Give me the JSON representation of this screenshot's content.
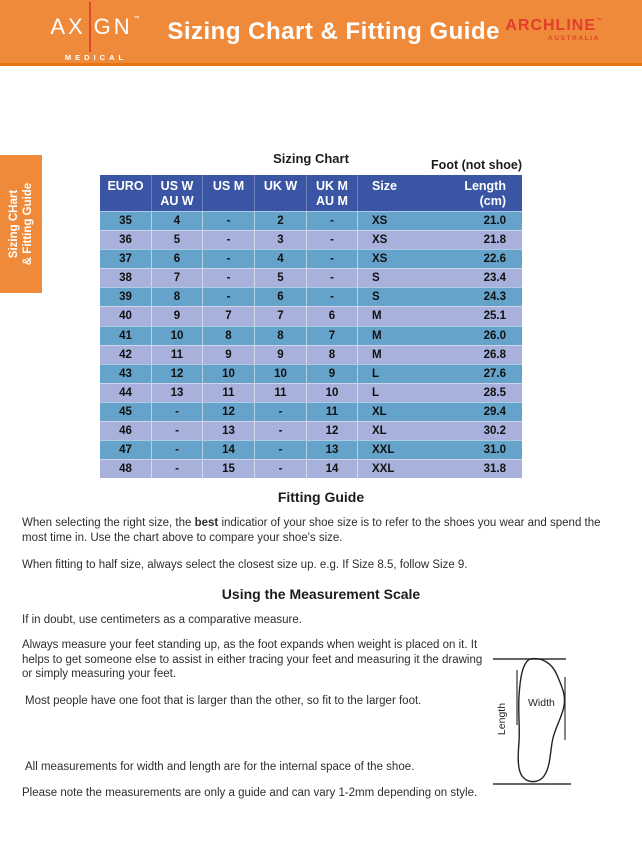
{
  "header": {
    "axign_part1": "AX",
    "axign_part2": "GN",
    "axign_tm": "™",
    "axign_sub": "MEDICAL",
    "title": "Sizing Chart & Fitting Guide",
    "archline_main": "ARCHLINE",
    "archline_tm": "™",
    "archline_sub": "AUSTRALIA"
  },
  "side_tab": {
    "line1": "Sizing CHart",
    "line2": "& Fitting Guide"
  },
  "chart": {
    "title": "Sizing Chart",
    "foot_note": "Foot (not shoe)",
    "columns": [
      {
        "line1": "EURO"
      },
      {
        "line1": "US W",
        "line2": "AU W"
      },
      {
        "line1": "US M"
      },
      {
        "line1": "UK W"
      },
      {
        "line1": "UK M",
        "line2": "AU M"
      },
      {
        "line1": "Size"
      },
      {
        "line1": "Length",
        "line2": "(cm)"
      }
    ],
    "rows": [
      [
        "35",
        "4",
        "-",
        "2",
        "-",
        "XS",
        "21.0"
      ],
      [
        "36",
        "5",
        "-",
        "3",
        "-",
        "XS",
        "21.8"
      ],
      [
        "37",
        "6",
        "-",
        "4",
        "-",
        "XS",
        "22.6"
      ],
      [
        "38",
        "7",
        "-",
        "5",
        "-",
        "S",
        "23.4"
      ],
      [
        "39",
        "8",
        "-",
        "6",
        "-",
        "S",
        "24.3"
      ],
      [
        "40",
        "9",
        "7",
        "7",
        "6",
        "M",
        "25.1"
      ],
      [
        "41",
        "10",
        "8",
        "8",
        "7",
        "M",
        "26.0"
      ],
      [
        "42",
        "11",
        "9",
        "9",
        "8",
        "M",
        "26.8"
      ],
      [
        "43",
        "12",
        "10",
        "10",
        "9",
        "L",
        "27.6"
      ],
      [
        "44",
        "13",
        "11",
        "11",
        "10",
        "L",
        "28.5"
      ],
      [
        "45",
        "-",
        "12",
        "-",
        "11",
        "XL",
        "29.4"
      ],
      [
        "46",
        "-",
        "13",
        "-",
        "12",
        "XL",
        "30.2"
      ],
      [
        "47",
        "-",
        "14",
        "-",
        "13",
        "XXL",
        "31.0"
      ],
      [
        "48",
        "-",
        "15",
        "-",
        "14",
        "XXL",
        "31.8"
      ]
    ]
  },
  "fitting_guide": {
    "heading": "Fitting Guide",
    "p1_before": "When selecting the right size, the ",
    "p1_bold": "best",
    "p1_after": " indicatior of your shoe size is to refer to the shoes you wear and spend the most time in. Use the chart above to compare your shoe's size.",
    "p2": "When fitting to half size, always select the closest size up. e.g. If Size 8.5, follow Size 9."
  },
  "measurement": {
    "heading": "Using the Measurement Scale",
    "p1": "If in doubt, use centimeters as a comparative measure.",
    "p2": "Always measure your feet standing up, as the foot expands when weight is placed on it. It helps to get someone else to assist in either tracing your feet and measuring it the drawing or simply measuring your feet.",
    "p3": "Most people have one foot that is larger than the other, so fit to the larger foot.",
    "p4": "All measurements for width and length are for the internal space of the shoe.",
    "p5": "Please note the measurements are only a guide and can vary 1-2mm depending on style."
  },
  "diagram": {
    "width_label": "Width",
    "length_label": "Length"
  },
  "colors": {
    "header_orange": "#F08A3B",
    "header_divider_orange": "#E8740F",
    "table_header_blue": "#3A55A4",
    "row_blue": "#66A3CA",
    "row_periwinkle": "#A8B1DC",
    "archline_red": "#E23D2E",
    "axign_line_red": "#E0492F"
  }
}
